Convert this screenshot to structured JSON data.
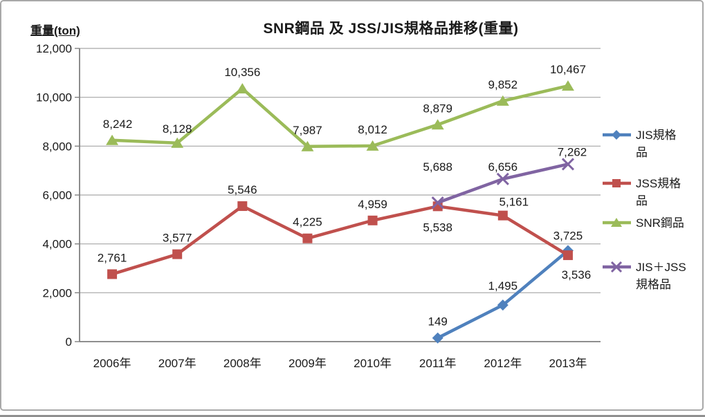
{
  "title": "SNR鋼品 及 JSS/JIS規格品推移(重量)",
  "y_axis_unit": "重量(ton)",
  "colors": {
    "jis_blue": "#4F81BD",
    "jss_red": "#C0504D",
    "snr_green": "#9BBB59",
    "jisjss_purple": "#8064A2",
    "gridline": "#A6A6A6",
    "axis": "#808080",
    "text": "#1A1A1A",
    "frame_border": "#A8A8A8"
  },
  "legend": {
    "items": [
      {
        "label": "JIS規格品",
        "lines": [
          "JIS規格",
          "品"
        ]
      },
      {
        "label": "JSS規格品",
        "lines": [
          "JSS規格",
          "品"
        ]
      },
      {
        "label": "SNR鋼品",
        "lines": [
          "SNR鋼品",
          ""
        ]
      },
      {
        "label": "JIS＋JSS規格品",
        "lines": [
          "JIS＋JSS",
          "規格品"
        ]
      }
    ]
  },
  "chart_data": {
    "type": "line",
    "title": "SNR鋼品 及 JSS/JIS規格品推移(重量)",
    "xlabel": "",
    "ylabel": "重量(ton)",
    "categories": [
      "2006年",
      "2007年",
      "2008年",
      "2009年",
      "2010年",
      "2011年",
      "2012年",
      "2013年"
    ],
    "ylim": [
      0,
      12000
    ],
    "ytick_values": [
      0,
      2000,
      4000,
      6000,
      8000,
      10000,
      12000
    ],
    "ytick_labels": [
      "0",
      "2,000",
      "4,000",
      "6,000",
      "8,000",
      "10,000",
      "12,000"
    ],
    "grid": true,
    "legend_position": "right",
    "series": [
      {
        "name": "JIS規格品",
        "color": "#4F81BD",
        "marker": "diamond",
        "start_index": 5,
        "values": [
          149,
          1495,
          3725
        ],
        "labels": [
          "149",
          "1,495",
          "3,725"
        ],
        "label_dy": [
          -18,
          -22,
          -16
        ],
        "label_dx": [
          0,
          0,
          0
        ]
      },
      {
        "name": "JSS規格品",
        "color": "#C0504D",
        "marker": "square",
        "start_index": 0,
        "values": [
          2761,
          3577,
          5546,
          4225,
          4959,
          5538,
          5161,
          3536
        ],
        "labels": [
          "2,761",
          "3,577",
          "5,546",
          "4,225",
          "4,959",
          "5,538",
          "5,161",
          "3,536"
        ],
        "label_dy": [
          -18,
          -18,
          -18,
          -18,
          -18,
          36,
          -14,
          34
        ],
        "label_dx": [
          0,
          0,
          0,
          0,
          0,
          0,
          16,
          12
        ]
      },
      {
        "name": "SNR鋼品",
        "color": "#9BBB59",
        "marker": "triangle",
        "start_index": 0,
        "values": [
          8242,
          8128,
          10356,
          7987,
          8012,
          8879,
          9852,
          10467
        ],
        "labels": [
          "8,242",
          "8,128",
          "10,356",
          "7,987",
          "8,012",
          "8,879",
          "9,852",
          "10,467"
        ],
        "label_dy": [
          -18,
          -15,
          -18,
          -18,
          -18,
          -18,
          -18,
          -18
        ],
        "label_dx": [
          8,
          0,
          0,
          0,
          0,
          0,
          0,
          0
        ]
      },
      {
        "name": "JIS＋JSS規格品",
        "color": "#8064A2",
        "marker": "x",
        "start_index": 5,
        "values": [
          5688,
          6656,
          7262
        ],
        "labels": [
          "5,688",
          "6,656",
          "7,262"
        ],
        "label_dy": [
          -46,
          -12,
          -12
        ],
        "label_dx": [
          0,
          0,
          6
        ]
      }
    ]
  }
}
